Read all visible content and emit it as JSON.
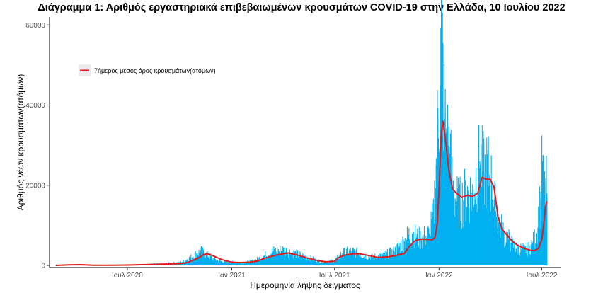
{
  "chart_data": {
    "type": "bar",
    "title": "Διάγραμμα 1: Αριθμός εργαστηριακά επιβεβαιωμένων κρουσμάτων COVID-19 στην Ελλάδα, 10 Ιουλίου 2022",
    "xlabel": "Ημερομηνία λήψης δείγματος",
    "ylabel": "Αριθμός νέων κρουσμάτων(ατόμων)",
    "ylim": [
      0,
      62000
    ],
    "xlim": [
      "2020-02-15",
      "2022-08-03"
    ],
    "y_ticks": [
      0,
      20000,
      40000,
      60000
    ],
    "y_tick_labels": [
      "0",
      "20000",
      "40000",
      "60000"
    ],
    "x_ticks": [
      "2020-07-01",
      "2021-01-01",
      "2021-07-01",
      "2022-01-01",
      "2022-07-01"
    ],
    "x_tick_labels": [
      "Ιουλ 2020",
      "Ιαν 2021",
      "Ιουλ 2021",
      "Ιαν 2022",
      "Ιουλ 2022"
    ],
    "grid": false,
    "legend_position": "top-left",
    "colors": {
      "bars": "#00b0f0",
      "line": "#e31a1c",
      "legend_bg": "#ebebeb"
    },
    "series": [
      {
        "name": "",
        "kind": "bars",
        "x": [
          "2020-03-01",
          "2020-04-01",
          "2020-05-01",
          "2020-06-01",
          "2020-07-01",
          "2020-08-01",
          "2020-08-15",
          "2020-09-01",
          "2020-09-15",
          "2020-10-01",
          "2020-10-15",
          "2020-11-01",
          "2020-11-08",
          "2020-11-15",
          "2020-11-22",
          "2020-12-01",
          "2020-12-15",
          "2021-01-01",
          "2021-01-15",
          "2021-02-01",
          "2021-02-15",
          "2021-03-01",
          "2021-03-15",
          "2021-04-01",
          "2021-04-15",
          "2021-05-01",
          "2021-05-15",
          "2021-06-01",
          "2021-06-15",
          "2021-07-01",
          "2021-07-15",
          "2021-08-01",
          "2021-08-15",
          "2021-09-01",
          "2021-09-15",
          "2021-10-01",
          "2021-10-15",
          "2021-11-01",
          "2021-11-08",
          "2021-11-15",
          "2021-11-22",
          "2021-12-01",
          "2021-12-15",
          "2021-12-22",
          "2021-12-27",
          "2021-12-30",
          "2022-01-03",
          "2022-01-05",
          "2022-01-07",
          "2022-01-10",
          "2022-01-13",
          "2022-01-17",
          "2022-01-20",
          "2022-01-24",
          "2022-01-27",
          "2022-02-01",
          "2022-02-07",
          "2022-02-14",
          "2022-02-21",
          "2022-03-01",
          "2022-03-07",
          "2022-03-14",
          "2022-03-21",
          "2022-03-28",
          "2022-04-04",
          "2022-04-11",
          "2022-04-18",
          "2022-04-25",
          "2022-05-01",
          "2022-05-08",
          "2022-05-15",
          "2022-05-22",
          "2022-06-01",
          "2022-06-08",
          "2022-06-15",
          "2022-06-22",
          "2022-06-26",
          "2022-06-29",
          "2022-07-02",
          "2022-07-05",
          "2022-07-08",
          "2022-07-10"
        ],
        "values": [
          60,
          100,
          50,
          30,
          60,
          250,
          350,
          400,
          600,
          700,
          1500,
          3000,
          3500,
          2800,
          2400,
          1500,
          1000,
          800,
          700,
          900,
          1500,
          2500,
          3500,
          3800,
          3200,
          2600,
          2000,
          1200,
          800,
          1200,
          3000,
          3500,
          2800,
          2000,
          2200,
          2800,
          3500,
          6000,
          7500,
          8000,
          7000,
          6500,
          8000,
          12000,
          25000,
          37000,
          45000,
          60000,
          52000,
          38000,
          33000,
          30000,
          28000,
          21000,
          18000,
          16000,
          15500,
          17000,
          18000,
          17500,
          22000,
          26000,
          23000,
          24000,
          20000,
          13500,
          10000,
          8000,
          7000,
          5500,
          4500,
          4200,
          3800,
          4200,
          5500,
          8000,
          14000,
          16000,
          26000,
          17000,
          20000,
          18000
        ]
      },
      {
        "name": "7ήμερος μέσος όρος κρουσμάτων(ατόμων)",
        "kind": "line",
        "x": [
          "2020-02-26",
          "2020-03-20",
          "2020-04-10",
          "2020-05-01",
          "2020-06-01",
          "2020-07-01",
          "2020-08-01",
          "2020-09-01",
          "2020-10-01",
          "2020-10-15",
          "2020-10-25",
          "2020-11-05",
          "2020-11-12",
          "2020-11-20",
          "2020-12-01",
          "2020-12-10",
          "2020-12-20",
          "2021-01-01",
          "2021-01-15",
          "2021-02-01",
          "2021-02-15",
          "2021-03-01",
          "2021-03-15",
          "2021-04-01",
          "2021-04-10",
          "2021-04-20",
          "2021-05-01",
          "2021-05-15",
          "2021-06-01",
          "2021-06-15",
          "2021-07-01",
          "2021-07-10",
          "2021-07-20",
          "2021-08-01",
          "2021-08-15",
          "2021-09-01",
          "2021-09-15",
          "2021-10-01",
          "2021-10-15",
          "2021-11-01",
          "2021-11-10",
          "2021-11-20",
          "2021-12-01",
          "2021-12-10",
          "2021-12-20",
          "2021-12-25",
          "2021-12-29",
          "2022-01-02",
          "2022-01-05",
          "2022-01-08",
          "2022-01-12",
          "2022-01-18",
          "2022-01-25",
          "2022-02-01",
          "2022-02-10",
          "2022-02-20",
          "2022-03-01",
          "2022-03-10",
          "2022-03-18",
          "2022-03-25",
          "2022-04-01",
          "2022-04-08",
          "2022-04-15",
          "2022-04-22",
          "2022-05-01",
          "2022-05-10",
          "2022-05-20",
          "2022-06-01",
          "2022-06-10",
          "2022-06-18",
          "2022-06-25",
          "2022-07-01",
          "2022-07-05",
          "2022-07-08",
          "2022-07-10"
        ],
        "values": [
          0,
          150,
          180,
          60,
          40,
          80,
          200,
          300,
          450,
          700,
          1300,
          2000,
          2700,
          2900,
          2300,
          1700,
          1200,
          800,
          700,
          800,
          1100,
          1800,
          2400,
          2900,
          3100,
          2800,
          2400,
          1800,
          1200,
          900,
          1000,
          2100,
          2600,
          2900,
          2900,
          2400,
          2000,
          2100,
          2400,
          3000,
          4800,
          6200,
          6600,
          6500,
          6400,
          7000,
          10500,
          22000,
          33000,
          36000,
          32000,
          24000,
          19000,
          18000,
          17000,
          17500,
          17200,
          18000,
          22000,
          21500,
          21500,
          19500,
          12000,
          9000,
          7500,
          6000,
          5000,
          4200,
          3800,
          3700,
          4200,
          6500,
          11000,
          15000,
          16000
        ]
      }
    ]
  }
}
